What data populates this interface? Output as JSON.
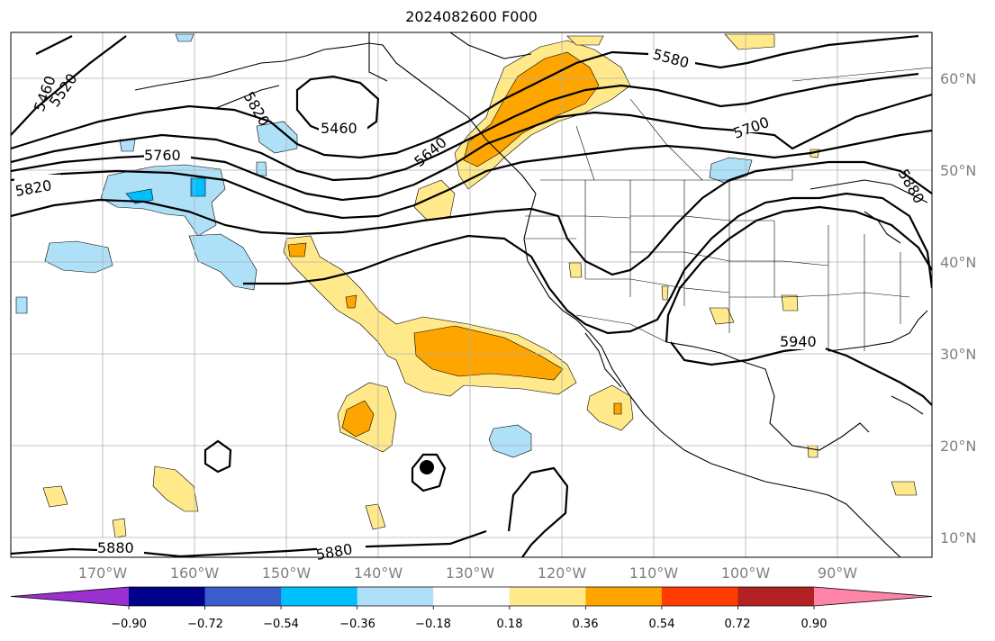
{
  "map": {
    "title": "2024082600 F000",
    "latitude_labels": [
      "60°N",
      "50°N",
      "40°N",
      "30°N",
      "20°N",
      "10°N"
    ],
    "longitude_labels": [
      "170°W",
      "160°W",
      "150°W",
      "140°W",
      "130°W",
      "120°W",
      "110°W",
      "100°W",
      "90°W"
    ],
    "contour_labels": [
      "5460",
      "5520",
      "5460",
      "5820",
      "5640",
      "5580",
      "5700",
      "5760",
      "5820",
      "5880",
      "5940",
      "5880",
      "5880"
    ],
    "legend": {
      "ticks": [
        "−0.90",
        "−0.72",
        "−0.54",
        "−0.36",
        "−0.18",
        "0.18",
        "0.36",
        "0.54",
        "0.72",
        "0.90"
      ],
      "colors": [
        "#9b30d0",
        "#00008b",
        "#3a5fcd",
        "#00bfff",
        "#aee0f8",
        "#ffffff",
        "#ffe98a",
        "#ffa500",
        "#ff3d00",
        "#b22222",
        "#ff85a8"
      ]
    },
    "colors": {
      "pos_light": "#ffe98a",
      "pos_mid": "#ffa500",
      "neg_light": "#aee0f8",
      "neg_mid": "#00bfff",
      "grid": "#b0b0b0"
    },
    "hurricane_marker": "tropical-cyclone-marker"
  }
}
